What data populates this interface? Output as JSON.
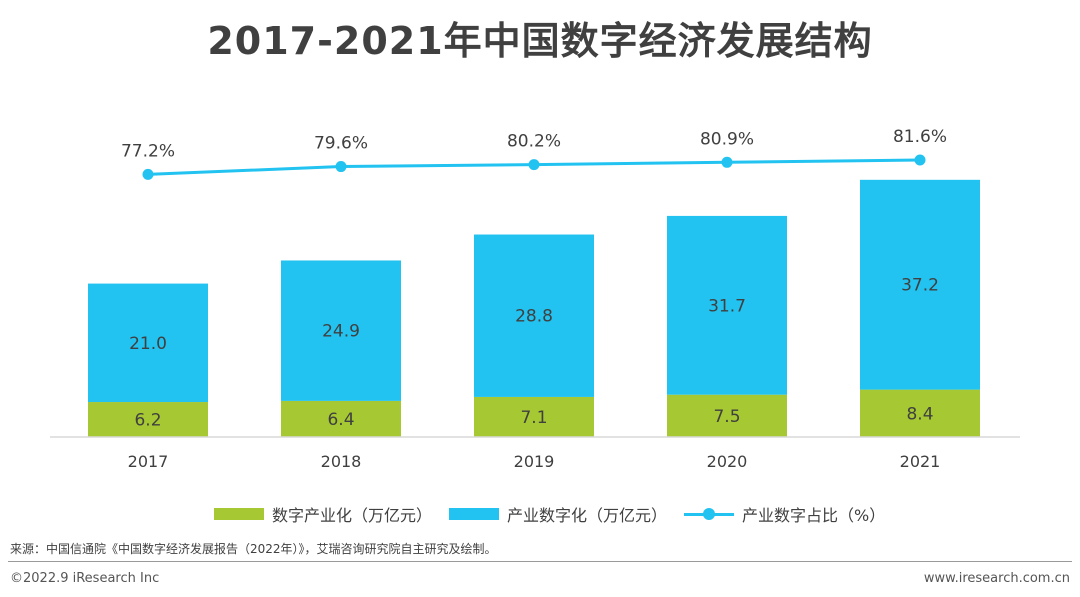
{
  "title": "2017-2021年中国数字经济发展结构",
  "chart_data": {
    "type": "bar",
    "stacked": true,
    "categories": [
      "2017",
      "2018",
      "2019",
      "2020",
      "2021"
    ],
    "series": [
      {
        "name": "数字产业化（万亿元）",
        "type": "bar",
        "color": "#a6c832",
        "values": [
          6.2,
          6.4,
          7.1,
          7.5,
          8.4
        ],
        "labels": [
          "6.2",
          "6.4",
          "7.1",
          "7.5",
          "8.4"
        ]
      },
      {
        "name": "产业数字化（万亿元）",
        "type": "bar",
        "color": "#22c3f0",
        "values": [
          21.0,
          24.9,
          28.8,
          31.7,
          37.2
        ],
        "labels": [
          "21.0",
          "24.9",
          "28.8",
          "31.7",
          "37.2"
        ]
      },
      {
        "name": "产业数字占比（%）",
        "type": "line",
        "color": "#22c3f0",
        "values": [
          77.2,
          79.6,
          80.2,
          80.9,
          81.6
        ],
        "labels": [
          "77.2%",
          "79.6%",
          "80.2%",
          "80.9%",
          "81.6%"
        ]
      }
    ],
    "legend_position": "bottom",
    "grid": false
  },
  "source": "来源：中国信通院《中国数字经济发展报告（2022年）》，艾瑞咨询研究院自主研究及绘制。",
  "footer": {
    "copyright": "©2022.9 iResearch Inc",
    "website": "www.iresearch.com.cn"
  }
}
